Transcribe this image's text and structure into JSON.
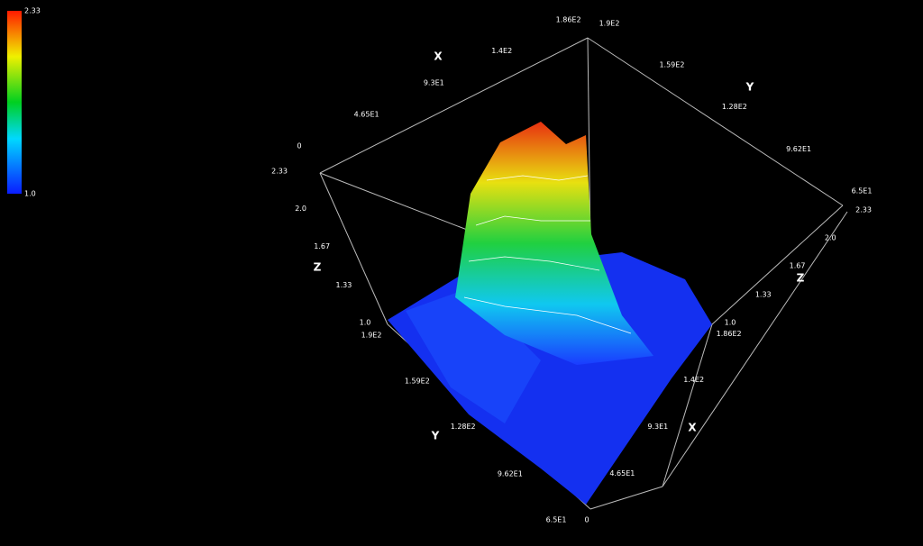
{
  "chart_data": {
    "type": "surface3d",
    "xlabel": "X",
    "ylabel": "Y",
    "zlabel": "Z",
    "xlim": [
      0,
      190
    ],
    "xticks": [
      0,
      {
        "value": 46.5,
        "label": "4.65E1"
      },
      {
        "value": 93,
        "label": "9.3E1"
      },
      {
        "value": 140,
        "label": "1.4E2"
      },
      {
        "value": 186,
        "label": "1.86E2"
      }
    ],
    "ylim": [
      65,
      190
    ],
    "yticks": [
      {
        "value": 65,
        "label": "6.5E1"
      },
      {
        "value": 96.2,
        "label": "9.62E1"
      },
      {
        "value": 128,
        "label": "1.28E2"
      },
      {
        "value": 159,
        "label": "1.59E2"
      },
      {
        "value": 190,
        "label": "1.9E2"
      }
    ],
    "zlim": [
      1,
      2.33
    ],
    "zticks": [
      {
        "value": 1,
        "label": "1.0"
      },
      1.33,
      1.67,
      {
        "value": 2,
        "label": "2.0"
      },
      2.33
    ],
    "colorbar_lim": [
      1,
      2.33
    ],
    "colorbar_ticks": [
      {
        "value": 1,
        "label": "1.0"
      },
      2.33
    ]
  }
}
